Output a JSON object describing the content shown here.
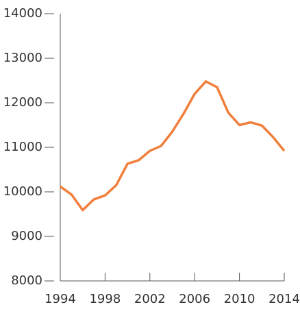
{
  "chart_data": {
    "type": "line",
    "x": [
      1994,
      1995,
      1996,
      1997,
      1998,
      1999,
      2000,
      2001,
      2002,
      2003,
      2004,
      2005,
      2006,
      2007,
      2008,
      2009,
      2010,
      2011,
      2012,
      2013,
      2014
    ],
    "series": [
      {
        "color": "#f07f3c",
        "values": [
          10120,
          9940,
          9590,
          9830,
          9920,
          10150,
          10630,
          10710,
          10920,
          11030,
          11350,
          11750,
          12200,
          12480,
          12350,
          11780,
          11500,
          11560,
          11490,
          11230,
          10920
        ]
      }
    ],
    "xlim": [
      1994,
      2014
    ],
    "xticks": [
      1994,
      1998,
      2002,
      2006,
      2010,
      2014
    ],
    "ylim": [
      8000,
      14000
    ],
    "yticks": [
      8000,
      9000,
      10000,
      11000,
      12000,
      13000,
      14000
    ]
  }
}
